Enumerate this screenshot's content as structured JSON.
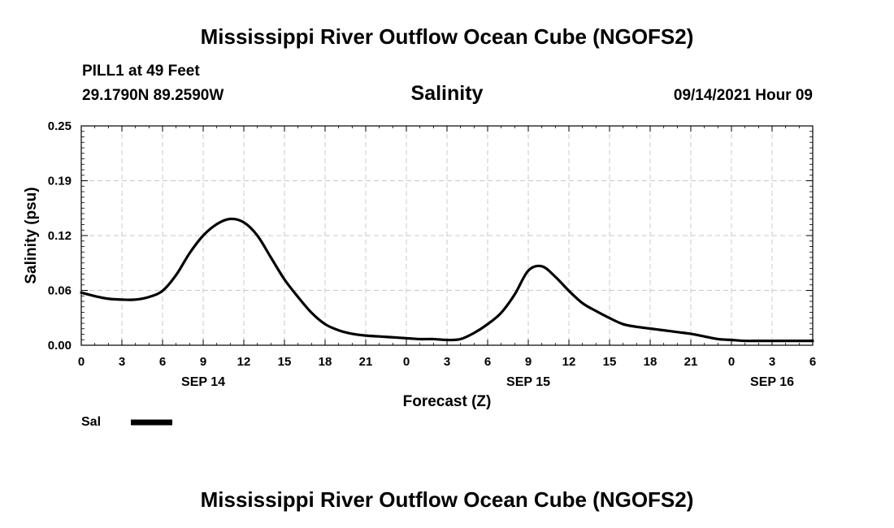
{
  "header": {
    "title": "Mississippi River Outflow Ocean Cube (NGOFS2)",
    "station": "PILL1 at 49 Feet",
    "coords": "29.1790N  89.2590W",
    "variable": "Salinity",
    "datetime": "09/14/2021 Hour 09"
  },
  "footer": {
    "title": "Mississippi River Outflow Ocean Cube (NGOFS2)"
  },
  "chart_data": {
    "type": "line",
    "title": "Salinity",
    "xlabel": "Forecast (Z)",
    "ylabel": "Salinity (psu)",
    "xlim": [
      0,
      54
    ],
    "ylim": [
      0.0,
      0.25
    ],
    "yticks": [
      "0.00",
      "0.06",
      "0.12",
      "0.19",
      "0.25"
    ],
    "xtick_labels": [
      "0",
      "3",
      "6",
      "9",
      "12",
      "15",
      "18",
      "21",
      "0",
      "3",
      "6",
      "9",
      "12",
      "15",
      "18",
      "21",
      "0",
      "3",
      "6"
    ],
    "date_labels": [
      {
        "hour": 9,
        "label": "SEP 14"
      },
      {
        "hour": 33,
        "label": "SEP 15"
      },
      {
        "hour": 51,
        "label": "SEP 16"
      }
    ],
    "grid": true,
    "series": [
      {
        "name": "Sal",
        "x": [
          0,
          1,
          2,
          3,
          4,
          5,
          6,
          7,
          8,
          9,
          10,
          11,
          12,
          13,
          14,
          15,
          16,
          17,
          18,
          19,
          20,
          21,
          22,
          23,
          24,
          25,
          26,
          27,
          28,
          29,
          30,
          31,
          32,
          33,
          34,
          35,
          36,
          37,
          38,
          39,
          40,
          41,
          42,
          43,
          44,
          45,
          46,
          47,
          48,
          49,
          50,
          51,
          52,
          53,
          54
        ],
        "values": [
          0.06,
          0.056,
          0.053,
          0.052,
          0.052,
          0.055,
          0.062,
          0.08,
          0.105,
          0.125,
          0.138,
          0.144,
          0.14,
          0.125,
          0.1,
          0.075,
          0.055,
          0.037,
          0.024,
          0.017,
          0.013,
          0.011,
          0.01,
          0.009,
          0.008,
          0.007,
          0.007,
          0.006,
          0.007,
          0.014,
          0.024,
          0.037,
          0.058,
          0.085,
          0.09,
          0.078,
          0.062,
          0.048,
          0.039,
          0.031,
          0.024,
          0.021,
          0.019,
          0.017,
          0.015,
          0.013,
          0.01,
          0.007,
          0.006,
          0.005,
          0.005,
          0.005,
          0.005,
          0.005,
          0.005
        ]
      }
    ]
  }
}
